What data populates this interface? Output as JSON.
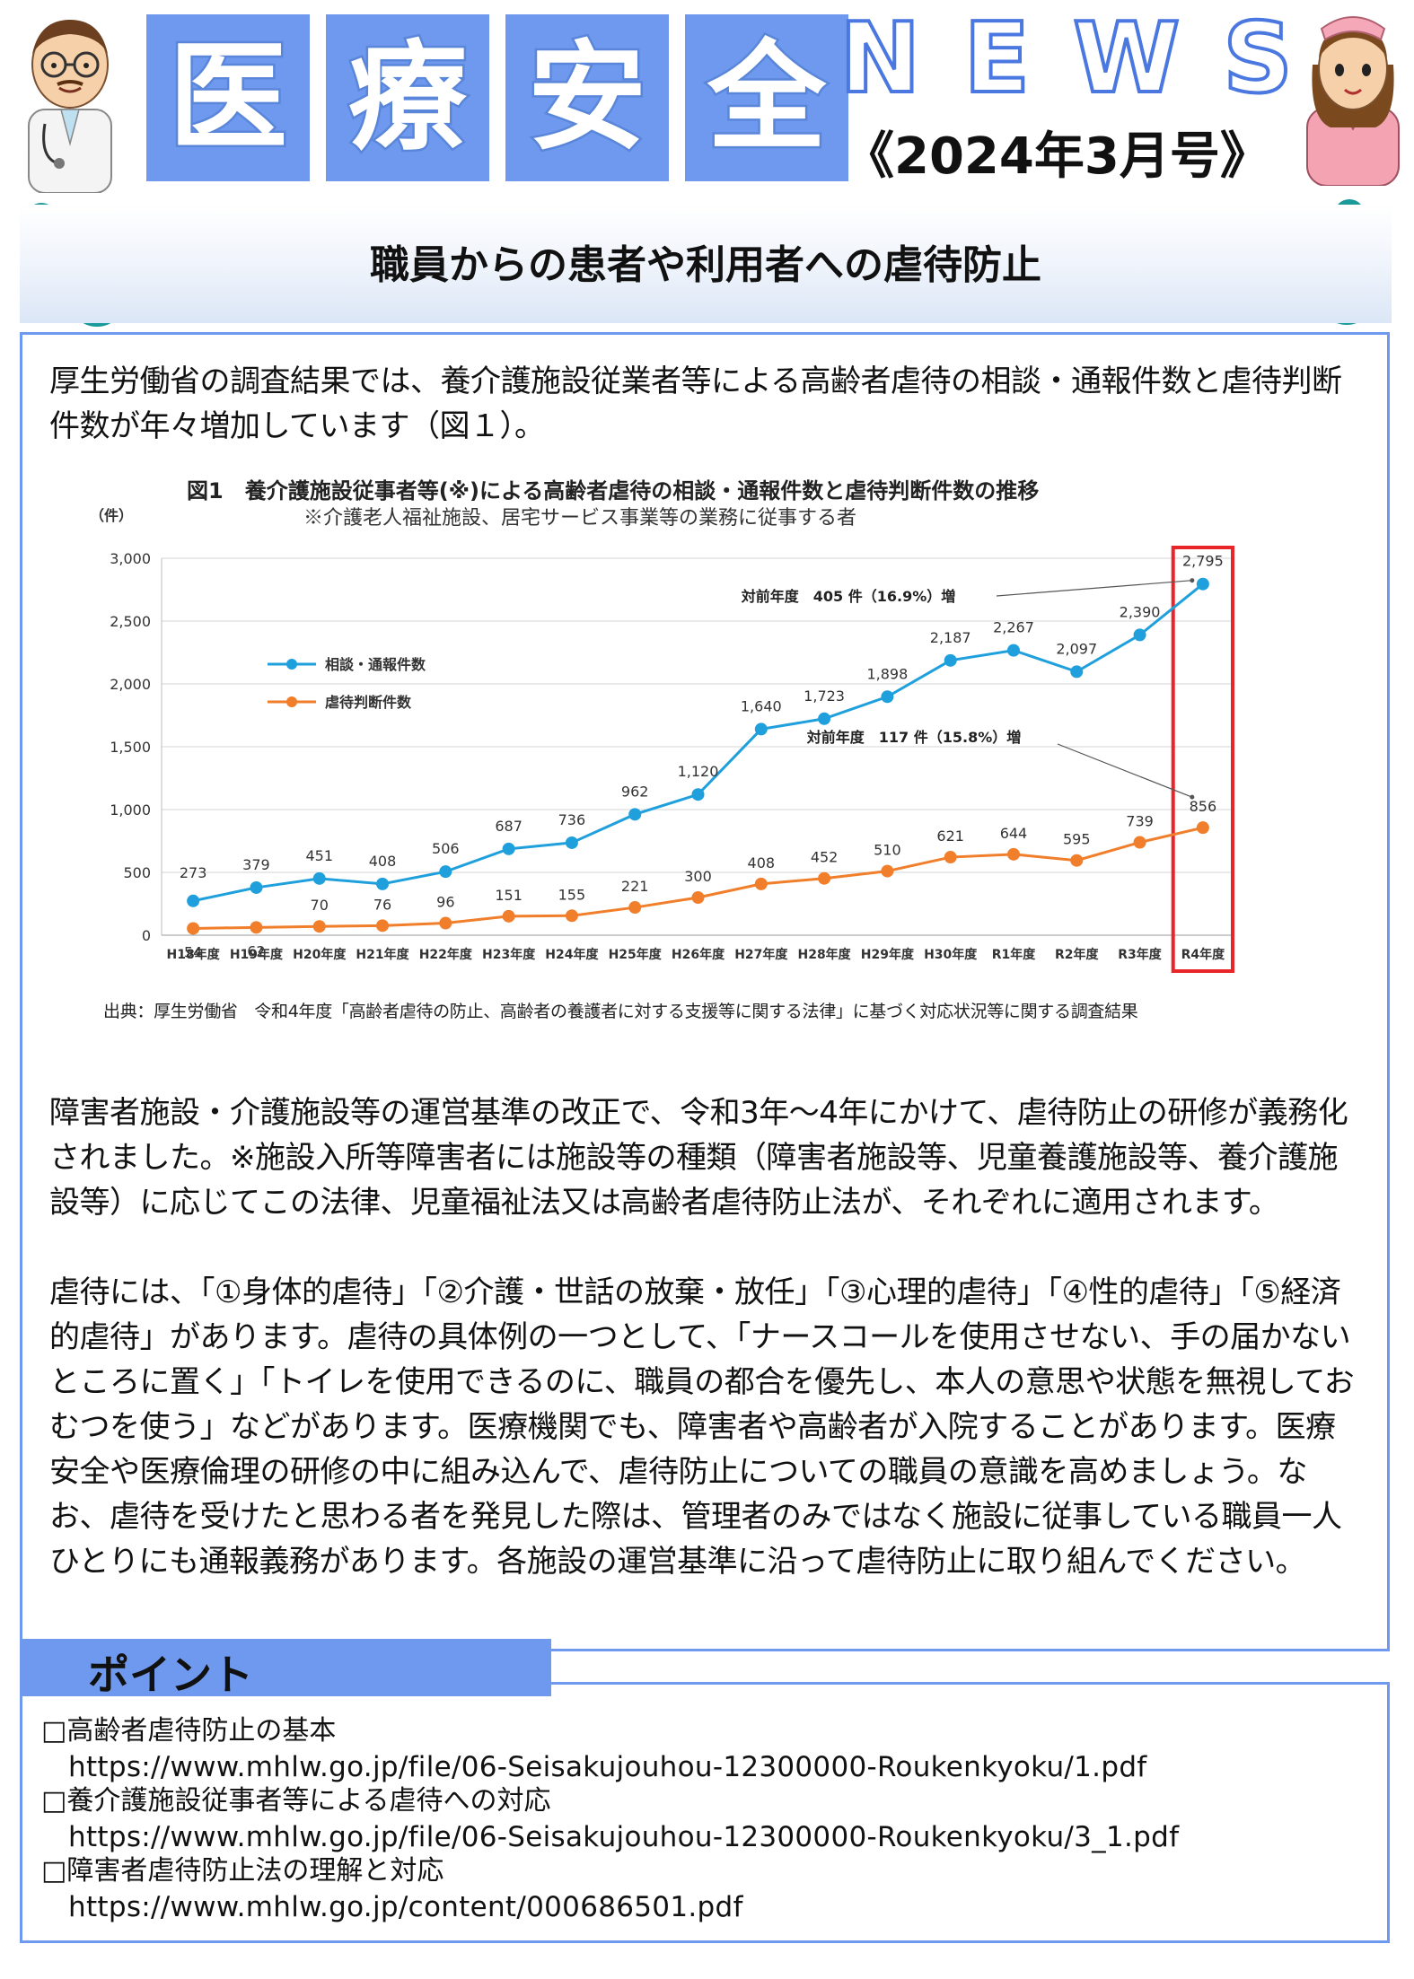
{
  "header": {
    "title_chars": [
      "医",
      "療",
      "安",
      "全"
    ],
    "news_letters": [
      "N",
      "E",
      "W",
      "S"
    ],
    "issue": "《2024年3月号》"
  },
  "banner": {
    "title": "職員からの患者や利用者への虐待防止"
  },
  "intro": "厚生労働省の調査結果では、養介護施設従業者等による高齢者虐待の相談・通報件数と虐待判断件数が年々増加しています（図１）。",
  "chart_data": {
    "type": "line",
    "title": "図1　養介護施設従事者等(※)による高齢者虐待の相談・通報件数と虐待判断件数の推移",
    "subtitle": "※介護老人福祉施設、居宅サービス事業等の業務に従事する者",
    "ylabel": "（件）",
    "ylim": [
      0,
      3000
    ],
    "yticks": [
      "0",
      "500",
      "1,000",
      "1,500",
      "2,000",
      "2,500",
      "3,000"
    ],
    "ytick_values": [
      0,
      500,
      1000,
      1500,
      2000,
      2500,
      3000
    ],
    "grid": true,
    "legend_position": "upper-left",
    "categories": [
      "H18年度",
      "H19年度",
      "H20年度",
      "H21年度",
      "H22年度",
      "H23年度",
      "H24年度",
      "H25年度",
      "H26年度",
      "H27年度",
      "H28年度",
      "H29年度",
      "H30年度",
      "R1年度",
      "R2年度",
      "R3年度",
      "R4年度"
    ],
    "series": [
      {
        "name": "相談・通報件数",
        "color": "#1fa0dc",
        "values": [
          273,
          379,
          451,
          408,
          506,
          687,
          736,
          962,
          1120,
          1640,
          1723,
          1898,
          2187,
          2267,
          2097,
          2390,
          2795
        ],
        "labels": [
          "273",
          "379",
          "451",
          "408",
          "506",
          "687",
          "736",
          "962",
          "1,120",
          "1,640",
          "1,723",
          "1,898",
          "2,187",
          "2,267",
          "2,097",
          "2,390",
          "2,795"
        ]
      },
      {
        "name": "虐待判断件数",
        "color": "#f07e2b",
        "values": [
          54,
          62,
          70,
          76,
          96,
          151,
          155,
          221,
          300,
          408,
          452,
          510,
          621,
          644,
          595,
          739,
          856
        ],
        "labels": [
          "54",
          "62",
          "70",
          "76",
          "96",
          "151",
          "155",
          "221",
          "300",
          "408",
          "452",
          "510",
          "621",
          "644",
          "595",
          "739",
          "856"
        ]
      }
    ],
    "annotations": [
      {
        "text": "対前年度　405 件（16.9%）増",
        "series": 0,
        "category": "R4年度"
      },
      {
        "text": "対前年度　117 件（15.8%）増",
        "series": 1,
        "category": "R4年度"
      }
    ],
    "highlight_category": "R4年度",
    "highlight_color": "#e8262a",
    "source": "出典：厚生労働省　令和4年度「高齢者虐待の防止、高齢者の養護者に対する支援等に関する法律」に基づく対応状況等に関する調査結果"
  },
  "body": {
    "p1": "障害者施設・介護施設等の運営基準の改正で、令和3年～4年にかけて、虐待防止の研修が義務化されました。※施設入所等障害者には施設等の種類（障害者施設等、児童養護施設等、養介護施設等）に応じてこの法律、児童福祉法又は高齢者虐待防止法が、それぞれに適用されます。",
    "p2": "虐待には、「①身体的虐待」「②介護・世話の放棄・放任」「③心理的虐待」「④性的虐待」「⑤経済的虐待」があります。虐待の具体例の一つとして、「ナースコールを使用させない、手の届かないところに置く」「トイレを使用できるのに、職員の都合を優先し、本人の意思や状態を無視しておむつを使う」などがあります。医療機関でも、障害者や高齢者が入院することがあります。医療安全や医療倫理の研修の中に組み込んで、虐待防止についての職員の意識を高めましょう。なお、虐待を受けたと思わる者を発見した際は、管理者のみではなく施設に従事している職員一人ひとりにも通報義務があります。各施設の運営基準に沿って虐待防止に取り組んでください。"
  },
  "points": {
    "heading": "ポイント",
    "items": [
      {
        "title": "□高齢者虐待防止の基本",
        "url": "https://www.mhlw.go.jp/file/06-Seisakujouhou-12300000-Roukenkyoku/1.pdf"
      },
      {
        "title": "□養介護施設従事者等による虐待への対応",
        "url": "https://www.mhlw.go.jp/file/06-Seisakujouhou-12300000-Roukenkyoku/3_1.pdf"
      },
      {
        "title": "□障害者虐待防止法の理解と対応",
        "url": "https://www.mhlw.go.jp/content/000686501.pdf"
      }
    ]
  }
}
